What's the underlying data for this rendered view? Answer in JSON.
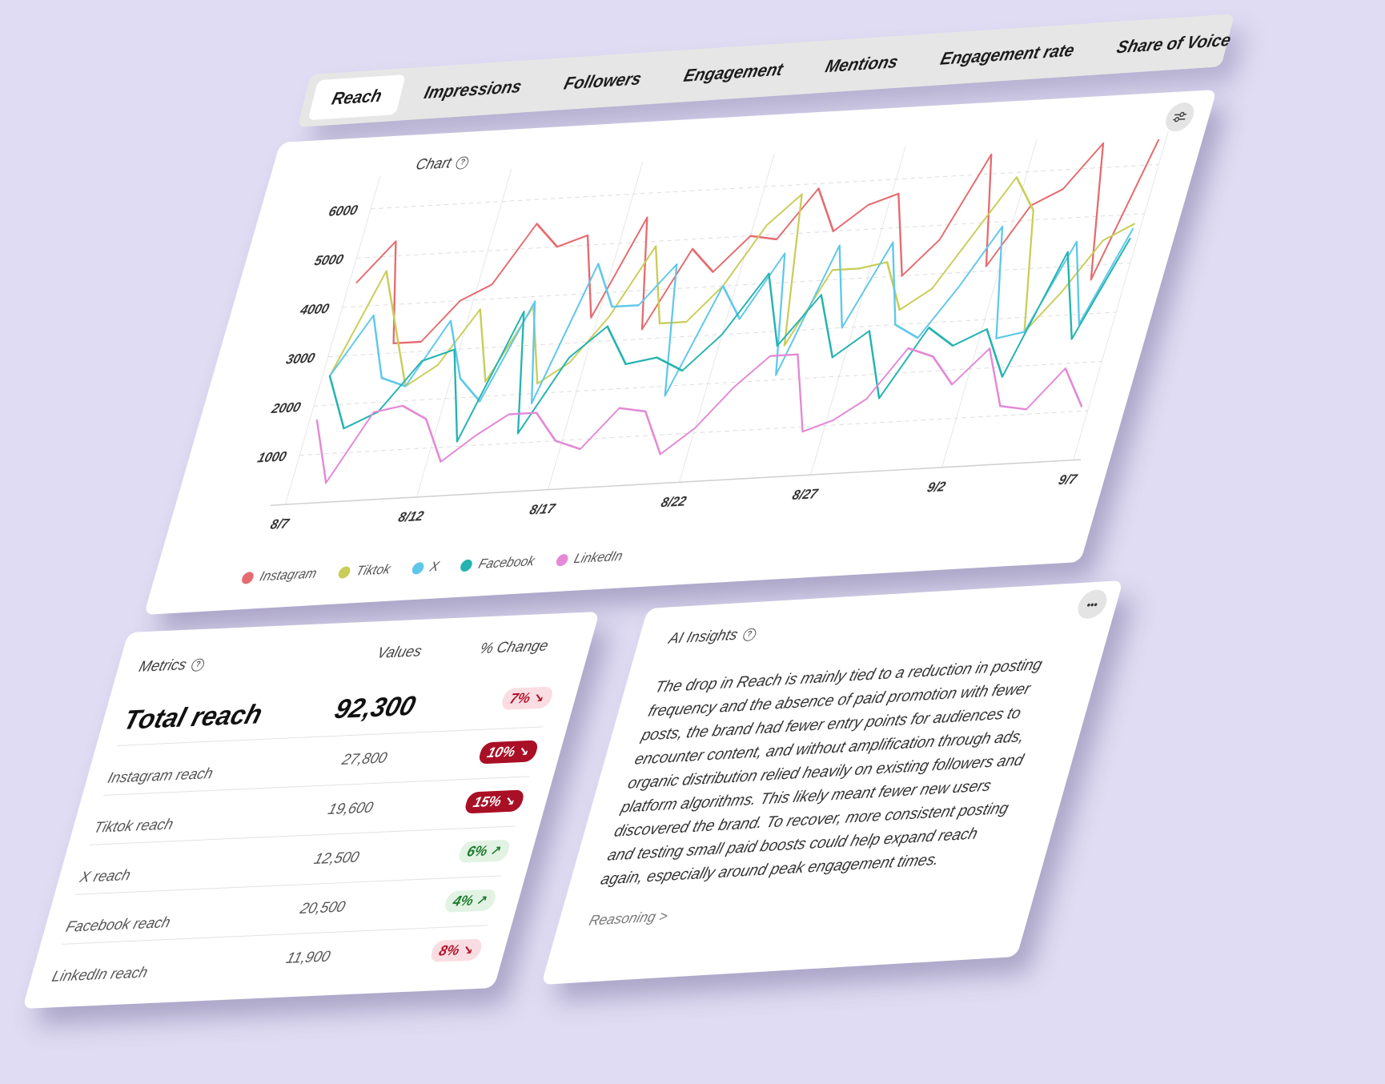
{
  "tabs": [
    {
      "label": "Reach",
      "active": true
    },
    {
      "label": "Impressions",
      "active": false
    },
    {
      "label": "Followers",
      "active": false
    },
    {
      "label": "Engagement",
      "active": false
    },
    {
      "label": "Mentions",
      "active": false
    },
    {
      "label": "Engagement rate",
      "active": false
    },
    {
      "label": "Share of Voice",
      "active": false
    }
  ],
  "chart_card": {
    "title": "Chart",
    "settings_icon": "sliders-icon"
  },
  "chart_data": {
    "type": "line",
    "title": "",
    "xlabel": "",
    "ylabel": "",
    "x_ticks": [
      "8/7",
      "8/12",
      "8/17",
      "8/22",
      "8/27",
      "9/2",
      "9/7"
    ],
    "y_ticks": [
      1000,
      2000,
      3000,
      4000,
      5000,
      6000
    ],
    "ylim": [
      0,
      6500
    ],
    "grid": true,
    "legend_position": "bottom-left",
    "series": [
      {
        "name": "Instagram",
        "color": "#e56b6f",
        "values": [
          4500,
          5300,
          3200,
          3200,
          4000,
          4300,
          5500,
          5000,
          5200,
          3500,
          5500,
          3200,
          4800,
          4300,
          5000,
          4900,
          5900,
          5000,
          5500,
          5700,
          4000,
          4700,
          6400,
          4100,
          5300,
          5600,
          6500,
          3700,
          6500
        ]
      },
      {
        "name": "Tiktok",
        "color": "#c9cd58",
        "values": [
          2600,
          4700,
          3500,
          2300,
          2700,
          3800,
          2300,
          3800,
          2200,
          2600,
          3500,
          4900,
          3300,
          3300,
          4000,
          5200,
          5800,
          2700,
          4200,
          4200,
          4300,
          3300,
          3700,
          4800,
          5900,
          5200,
          2700,
          3500,
          4500,
          4800
        ]
      },
      {
        "name": "X",
        "color": "#5fc8ea",
        "values": [
          2600,
          3800,
          2500,
          2300,
          3600,
          2400,
          1900,
          3900,
          1800,
          4600,
          3700,
          3700,
          4500,
          1800,
          4000,
          3300,
          4600,
          2100,
          4700,
          3000,
          4700,
          3000,
          2700,
          3700,
          4900,
          2600,
          2700,
          4500,
          2800,
          4700
        ]
      },
      {
        "name": "Facebook",
        "color": "#24b3b0",
        "values": [
          2600,
          1500,
          1800,
          2800,
          3000,
          1100,
          3700,
          1200,
          2700,
          3300,
          2500,
          2600,
          2300,
          3000,
          4200,
          2700,
          3700,
          2400,
          2900,
          1500,
          2900,
          2500,
          2800,
          1800,
          4300,
          2500,
          4500
        ]
      },
      {
        "name": "LinkedIn",
        "color": "#e389d6",
        "values": [
          1700,
          400,
          1800,
          1900,
          1600,
          700,
          1200,
          1600,
          1600,
          1000,
          800,
          1600,
          1500,
          600,
          1100,
          1900,
          2500,
          2500,
          900,
          1100,
          1500,
          2500,
          2300,
          1700,
          2400,
          1200,
          1100,
          1900,
          1100
        ]
      }
    ]
  },
  "metrics": {
    "title": "Metrics",
    "col_values": "Values",
    "col_change": "% Change",
    "total_label": "Total reach",
    "total_value": "92,300",
    "total_change": "7%",
    "rows": [
      {
        "label": "Instagram reach",
        "value": "27,800",
        "change": "10%"
      },
      {
        "label": "Tiktok reach",
        "value": "19,600",
        "change": "15%"
      },
      {
        "label": "X reach",
        "value": "12,500",
        "change": "6%"
      },
      {
        "label": "Facebook reach",
        "value": "20,500",
        "change": "4%"
      },
      {
        "label": "LinkedIn reach",
        "value": "11,900",
        "change": "8%"
      }
    ]
  },
  "insights": {
    "title": "AI Insights",
    "more_icon": "more-icon",
    "text": "The drop in Reach is mainly tied to a reduction in posting frequency and the absence of paid promotion with fewer posts, the brand had fewer entry points for audiences to encounter content, and without amplification through ads, organic distribution relied heavily on existing followers and platform algorithms. This likely meant fewer new users discovered the brand. To recover, more consistent posting and testing small paid boosts could help expand reach again, especially around peak engagement times.",
    "reasoning_link": "Reasoning >"
  },
  "colors": {
    "background": "#e0dcf3",
    "negative_soft": "#fadde2",
    "negative_strong": "#a90f25",
    "positive": "#e2f3e4"
  }
}
